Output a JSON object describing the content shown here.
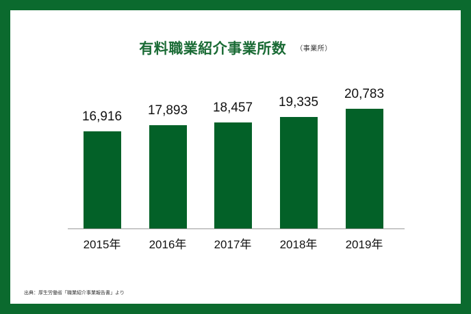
{
  "chart_data": {
    "type": "bar",
    "title": "有料職業紹介事業所数",
    "unit_label": "（事業所）",
    "categories": [
      "2015年",
      "2016年",
      "2017年",
      "2018年",
      "2019年"
    ],
    "values": [
      16916,
      17893,
      18457,
      19335,
      20783
    ],
    "value_labels": [
      "16,916",
      "17,893",
      "18,457",
      "19,335",
      "20,783"
    ],
    "xlabel": "",
    "ylabel": "",
    "ylim": [
      0,
      23000
    ],
    "grid": false,
    "legend": null,
    "bar_color": "#036128",
    "annotations": [
      "出典：厚生労働省「職業紹介事業報告書」より"
    ]
  },
  "theme": {
    "frame_color": "#0b6a2e",
    "title_color": "#1a6b35"
  },
  "footer": {
    "source": "出典：厚生労働省「職業紹介事業報告書」より"
  }
}
